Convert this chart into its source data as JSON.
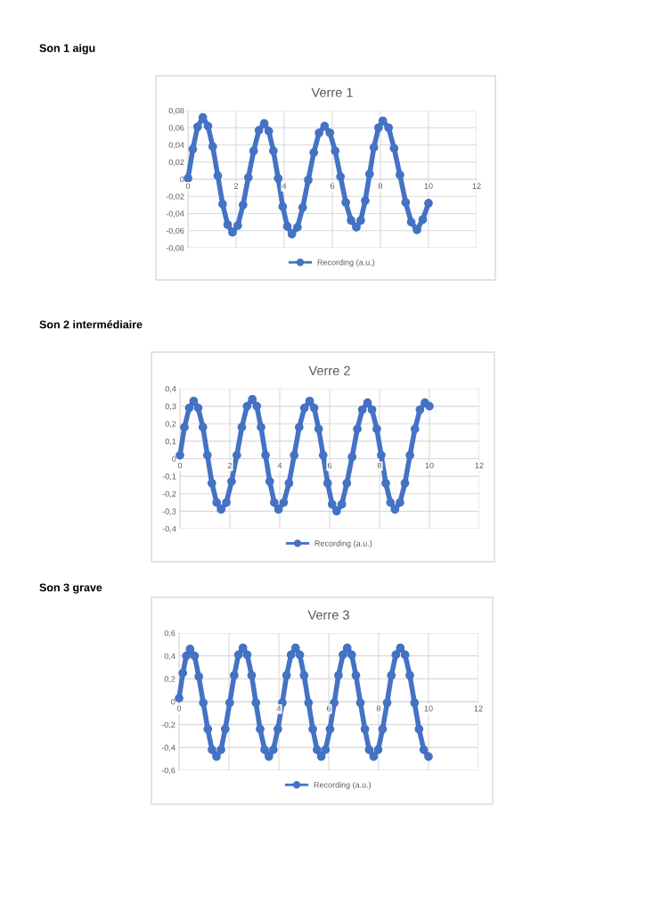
{
  "chart_data": [
    {
      "type": "line",
      "title": "Verre 1",
      "annotations": [
        "Son 1 aigu"
      ],
      "series": [
        {
          "name": "Recording (a.u.)",
          "color": "#4472c4",
          "x": [
            0,
            0.2,
            0.4,
            0.62,
            0.83,
            1.03,
            1.24,
            1.44,
            1.65,
            1.85,
            2.07,
            2.29,
            2.51,
            2.73,
            2.95,
            3.17,
            3.36,
            3.55,
            3.75,
            3.94,
            4.13,
            4.32,
            4.55,
            4.77,
            5.0,
            5.23,
            5.45,
            5.68,
            5.9,
            6.12,
            6.34,
            6.56,
            6.78,
            7.0,
            7.18,
            7.37,
            7.55,
            7.73,
            7.92,
            8.1,
            8.34,
            8.57,
            8.81,
            9.05,
            9.28,
            9.52,
            9.76,
            10.0
          ],
          "values": [
            0.001,
            0.035,
            0.061,
            0.072,
            0.062,
            0.038,
            0.004,
            -0.029,
            -0.053,
            -0.062,
            -0.054,
            -0.03,
            0.002,
            0.033,
            0.057,
            0.065,
            0.056,
            0.033,
            0.001,
            -0.032,
            -0.055,
            -0.064,
            -0.056,
            -0.033,
            -0.001,
            0.031,
            0.054,
            0.062,
            0.054,
            0.033,
            0.003,
            -0.027,
            -0.048,
            -0.056,
            -0.048,
            -0.025,
            0.006,
            0.037,
            0.06,
            0.068,
            0.06,
            0.036,
            0.005,
            -0.027,
            -0.05,
            -0.059,
            -0.047,
            -0.028
          ]
        }
      ],
      "xlim": [
        0,
        12
      ],
      "xticks": [
        0,
        2,
        4,
        6,
        8,
        10,
        12
      ],
      "ylim": [
        -0.08,
        0.08
      ],
      "yticks": [
        {
          "value": -0.08,
          "label": "-0,08"
        },
        {
          "value": -0.06,
          "label": "-0,06"
        },
        {
          "value": -0.04,
          "label": "-0,04"
        },
        {
          "value": -0.02,
          "label": "-0,02"
        },
        0,
        {
          "value": 0.02,
          "label": "0,02"
        },
        {
          "value": 0.04,
          "label": "0,04"
        },
        {
          "value": 0.06,
          "label": "0,06"
        },
        {
          "value": 0.08,
          "label": "0,08"
        }
      ],
      "grid": true,
      "legend": "bottom",
      "marker": "circle",
      "line_style": "solid"
    },
    {
      "type": "line",
      "title": "Verre 2",
      "annotations": [
        "Son 2 intermédiaire"
      ],
      "series": [
        {
          "name": "Recording (a.u.)",
          "color": "#4472c4",
          "x": [
            0,
            0.18,
            0.37,
            0.55,
            0.73,
            0.92,
            1.1,
            1.28,
            1.47,
            1.65,
            1.86,
            2.07,
            2.28,
            2.48,
            2.69,
            2.9,
            3.08,
            3.25,
            3.43,
            3.6,
            3.78,
            3.95,
            4.16,
            4.37,
            4.58,
            4.78,
            4.99,
            5.2,
            5.38,
            5.56,
            5.74,
            5.92,
            6.1,
            6.28,
            6.49,
            6.69,
            6.9,
            7.11,
            7.31,
            7.52,
            7.7,
            7.89,
            8.07,
            8.25,
            8.44,
            8.62,
            8.82,
            9.02,
            9.22,
            9.42,
            9.62,
            9.82,
            10.0
          ],
          "values": [
            0.02,
            0.18,
            0.29,
            0.33,
            0.29,
            0.18,
            0.02,
            -0.14,
            -0.25,
            -0.29,
            -0.25,
            -0.13,
            0.02,
            0.18,
            0.3,
            0.34,
            0.3,
            0.18,
            0.02,
            -0.13,
            -0.25,
            -0.29,
            -0.25,
            -0.14,
            0.02,
            0.18,
            0.29,
            0.33,
            0.29,
            0.17,
            0.02,
            -0.14,
            -0.26,
            -0.3,
            -0.26,
            -0.14,
            0.01,
            0.17,
            0.28,
            0.32,
            0.28,
            0.17,
            0.02,
            -0.14,
            -0.25,
            -0.29,
            -0.25,
            -0.14,
            0.02,
            0.17,
            0.28,
            0.32,
            0.3
          ]
        }
      ],
      "xlim": [
        0,
        12
      ],
      "xticks": [
        0,
        2,
        4,
        6,
        8,
        10,
        12
      ],
      "ylim": [
        -0.4,
        0.4
      ],
      "yticks": [
        {
          "value": -0.4,
          "label": "-0,4"
        },
        {
          "value": -0.3,
          "label": "-0,3"
        },
        {
          "value": -0.2,
          "label": "-0,2"
        },
        {
          "value": -0.1,
          "label": "-0,1"
        },
        0,
        {
          "value": 0.1,
          "label": "0,1"
        },
        {
          "value": 0.2,
          "label": "0,2"
        },
        {
          "value": 0.3,
          "label": "0,3"
        },
        {
          "value": 0.4,
          "label": "0,4"
        }
      ],
      "grid": true,
      "legend": "bottom",
      "marker": "circle",
      "line_style": "solid"
    },
    {
      "type": "line",
      "title": "Verre 3",
      "annotations": [
        "Son 3 grave"
      ],
      "series": [
        {
          "name": "Recording (a.u.)",
          "color": "#4472c4",
          "x": [
            0,
            0.15,
            0.29,
            0.44,
            0.62,
            0.79,
            0.97,
            1.15,
            1.32,
            1.5,
            1.68,
            1.85,
            2.03,
            2.21,
            2.38,
            2.56,
            2.73,
            2.91,
            3.08,
            3.25,
            3.43,
            3.6,
            3.78,
            3.96,
            4.14,
            4.31,
            4.49,
            4.67,
            4.84,
            5.01,
            5.19,
            5.36,
            5.53,
            5.7,
            5.87,
            6.05,
            6.22,
            6.39,
            6.57,
            6.74,
            6.92,
            7.09,
            7.27,
            7.45,
            7.62,
            7.8,
            7.98,
            8.16,
            8.34,
            8.51,
            8.69,
            8.87,
            9.06,
            9.25,
            9.44,
            9.62,
            9.81,
            10.0
          ],
          "values": [
            0.03,
            0.25,
            0.4,
            0.46,
            0.4,
            0.22,
            -0.01,
            -0.24,
            -0.42,
            -0.48,
            -0.42,
            -0.24,
            -0.01,
            0.23,
            0.41,
            0.47,
            0.41,
            0.23,
            -0.01,
            -0.24,
            -0.42,
            -0.48,
            -0.42,
            -0.24,
            -0.01,
            0.23,
            0.41,
            0.47,
            0.41,
            0.23,
            -0.01,
            -0.24,
            -0.42,
            -0.48,
            -0.42,
            -0.24,
            -0.01,
            0.23,
            0.41,
            0.47,
            0.41,
            0.23,
            -0.01,
            -0.24,
            -0.42,
            -0.48,
            -0.42,
            -0.24,
            -0.01,
            0.23,
            0.41,
            0.47,
            0.41,
            0.23,
            -0.01,
            -0.24,
            -0.42,
            -0.48
          ]
        }
      ],
      "xlim": [
        0,
        12
      ],
      "xticks": [
        0,
        {
          "value": 2,
          "label": null
        },
        4,
        6,
        8,
        10,
        12
      ],
      "ylim": [
        -0.6,
        0.6
      ],
      "yticks": [
        {
          "value": -0.6,
          "label": "-0,6"
        },
        {
          "value": -0.4,
          "label": "-0,4"
        },
        {
          "value": -0.2,
          "label": "-0,2"
        },
        0,
        {
          "value": 0.2,
          "label": "0,2"
        },
        {
          "value": 0.4,
          "label": "0,4"
        },
        {
          "value": 0.6,
          "label": "0,6"
        }
      ],
      "grid": true,
      "legend": "bottom",
      "marker": "circle",
      "line_style": "solid"
    }
  ]
}
